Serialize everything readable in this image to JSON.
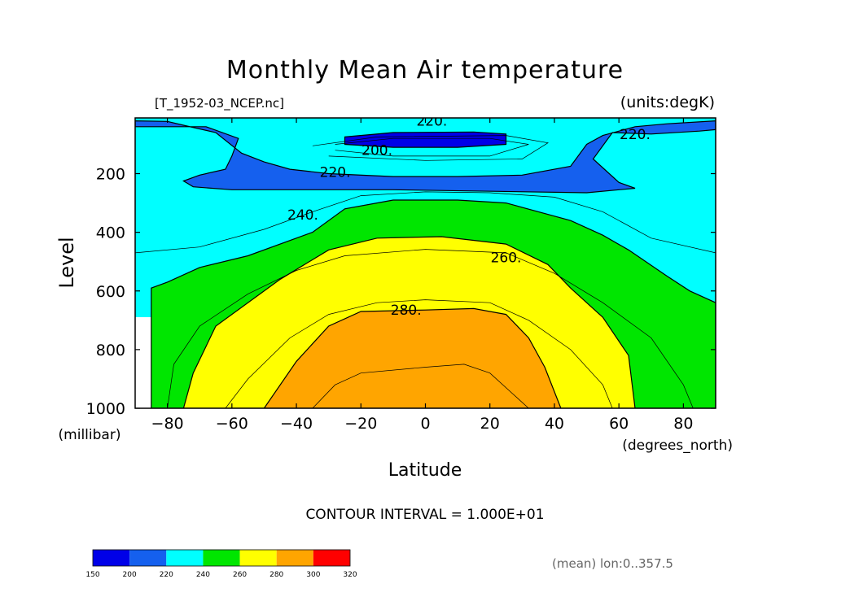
{
  "chart_data": {
    "type": "contour",
    "title": "Monthly Mean Air temperature",
    "file_label": "[T_1952-03_NCEP.nc]",
    "units_label": "(units:degK)",
    "xlabel": "Latitude",
    "xunits": "(degrees_north)",
    "ylabel": "Level",
    "yunits": "(millibar)",
    "xlim": [
      -90,
      90
    ],
    "ylim": [
      1000,
      10
    ],
    "y_inverted": true,
    "x_ticks": [
      -80,
      -60,
      -40,
      -20,
      0,
      20,
      40,
      60,
      80
    ],
    "x_tick_labels": [
      "−80",
      "−60",
      "−40",
      "−20",
      "0",
      "20",
      "40",
      "60",
      "80"
    ],
    "y_ticks": [
      200,
      400,
      600,
      800,
      1000
    ],
    "y_tick_labels": [
      "200",
      "400",
      "600",
      "800",
      "1000"
    ],
    "contour_interval_text": "CONTOUR INTERVAL = 1.000E+01",
    "mean_note": "(mean) lon:0..357.5",
    "contour_labels": [
      {
        "text": "220.",
        "lat": 2,
        "level": 20
      },
      {
        "text": "200.",
        "lat": -15,
        "level": 120
      },
      {
        "text": "220.",
        "lat": 65,
        "level": 65
      },
      {
        "text": "220.",
        "lat": -28,
        "level": 195
      },
      {
        "text": "240.",
        "lat": -38,
        "level": 340
      },
      {
        "text": "260.",
        "lat": 25,
        "level": 485
      },
      {
        "text": "280.",
        "lat": -6,
        "level": 665
      }
    ],
    "filled_bands": [
      {
        "range": [
          200,
          220
        ],
        "color": "#1560ee",
        "outline": [
          [
            -90,
            20
          ],
          [
            -80,
            22
          ],
          [
            -75,
            35
          ],
          [
            -65,
            60
          ],
          [
            -57,
            130
          ],
          [
            -50,
            160
          ],
          [
            -42,
            185
          ],
          [
            -30,
            200
          ],
          [
            -10,
            210
          ],
          [
            10,
            210
          ],
          [
            30,
            205
          ],
          [
            45,
            175
          ],
          [
            50,
            100
          ],
          [
            55,
            70
          ],
          [
            65,
            40
          ],
          [
            75,
            30
          ],
          [
            90,
            20
          ],
          [
            90,
            50
          ],
          [
            85,
            55
          ],
          [
            70,
            65
          ],
          [
            58,
            60
          ],
          [
            52,
            150
          ],
          [
            60,
            230
          ],
          [
            65,
            250
          ],
          [
            50,
            265
          ],
          [
            -10,
            255
          ],
          [
            -60,
            255
          ],
          [
            -72,
            245
          ],
          [
            -75,
            225
          ],
          [
            -70,
            205
          ],
          [
            -62,
            185
          ],
          [
            -60,
            140
          ],
          [
            -58,
            80
          ],
          [
            -68,
            40
          ],
          [
            -90,
            40
          ]
        ]
      },
      {
        "range": [
          150,
          200
        ],
        "color": "#0000e8",
        "outline": [
          [
            -25,
            75
          ],
          [
            -10,
            60
          ],
          [
            15,
            58
          ],
          [
            25,
            65
          ],
          [
            25,
            100
          ],
          [
            10,
            110
          ],
          [
            -10,
            110
          ],
          [
            -25,
            100
          ]
        ]
      },
      {
        "range": [
          240,
          260
        ],
        "color": "#00e600",
        "outline": [
          [
            -85,
            1000
          ],
          [
            -85,
            590
          ],
          [
            -80,
            570
          ],
          [
            -70,
            520
          ],
          [
            -55,
            480
          ],
          [
            -35,
            400
          ],
          [
            -25,
            320
          ],
          [
            -10,
            290
          ],
          [
            10,
            290
          ],
          [
            25,
            300
          ],
          [
            45,
            360
          ],
          [
            55,
            410
          ],
          [
            63,
            460
          ],
          [
            75,
            550
          ],
          [
            82,
            600
          ],
          [
            90,
            640
          ],
          [
            90,
            1000
          ]
        ]
      },
      {
        "range": [
          260,
          280
        ],
        "color": "#ffff00",
        "outline": [
          [
            -75,
            1000
          ],
          [
            -72,
            880
          ],
          [
            -65,
            720
          ],
          [
            -45,
            560
          ],
          [
            -30,
            460
          ],
          [
            -15,
            420
          ],
          [
            5,
            415
          ],
          [
            25,
            440
          ],
          [
            38,
            510
          ],
          [
            45,
            590
          ],
          [
            55,
            690
          ],
          [
            63,
            820
          ],
          [
            65,
            1000
          ]
        ]
      },
      {
        "range": [
          280,
          290
        ],
        "color": "#ffa500",
        "outline": [
          [
            -50,
            1000
          ],
          [
            -40,
            840
          ],
          [
            -30,
            720
          ],
          [
            -20,
            670
          ],
          [
            0,
            665
          ],
          [
            15,
            660
          ],
          [
            25,
            680
          ],
          [
            32,
            760
          ],
          [
            37,
            860
          ],
          [
            42,
            1000
          ]
        ]
      }
    ],
    "contour_lines": [
      [
        [
          -90,
          470
        ],
        [
          -70,
          450
        ],
        [
          -50,
          390
        ],
        [
          -35,
          330
        ],
        [
          -20,
          275
        ],
        [
          0,
          262
        ],
        [
          20,
          265
        ],
        [
          40,
          280
        ],
        [
          55,
          330
        ],
        [
          70,
          420
        ],
        [
          90,
          470
        ]
      ],
      [
        [
          -80,
          1000
        ],
        [
          -78,
          850
        ],
        [
          -70,
          720
        ],
        [
          -55,
          610
        ],
        [
          -40,
          530
        ],
        [
          -25,
          480
        ],
        [
          0,
          458
        ],
        [
          25,
          470
        ],
        [
          40,
          540
        ],
        [
          55,
          640
        ],
        [
          70,
          760
        ],
        [
          80,
          920
        ],
        [
          83,
          1000
        ]
      ],
      [
        [
          -62,
          1000
        ],
        [
          -55,
          900
        ],
        [
          -42,
          760
        ],
        [
          -30,
          680
        ],
        [
          -15,
          640
        ],
        [
          0,
          630
        ],
        [
          20,
          640
        ],
        [
          32,
          700
        ],
        [
          45,
          800
        ],
        [
          55,
          920
        ],
        [
          58,
          1000
        ]
      ],
      [
        [
          -35,
          1000
        ],
        [
          -28,
          920
        ],
        [
          -20,
          880
        ],
        [
          0,
          860
        ],
        [
          12,
          850
        ],
        [
          20,
          880
        ],
        [
          27,
          950
        ],
        [
          32,
          1000
        ]
      ],
      [
        [
          -28,
          100
        ],
        [
          -10,
          80
        ],
        [
          20,
          80
        ],
        [
          32,
          100
        ],
        [
          20,
          140
        ],
        [
          -10,
          140
        ],
        [
          -28,
          120
        ]
      ],
      [
        [
          -35,
          105
        ],
        [
          -15,
          75
        ],
        [
          25,
          70
        ],
        [
          38,
          95
        ],
        [
          30,
          150
        ],
        [
          0,
          155
        ],
        [
          -30,
          140
        ]
      ]
    ],
    "colorbar": {
      "ticks": [
        "150",
        "200",
        "220",
        "240",
        "260",
        "280",
        "300",
        "320"
      ],
      "colors": [
        "#0000e8",
        "#1560ee",
        "#00ffff",
        "#00e600",
        "#ffff00",
        "#ffa500",
        "#ff0000"
      ]
    },
    "background_band_color": "#00ffff"
  }
}
